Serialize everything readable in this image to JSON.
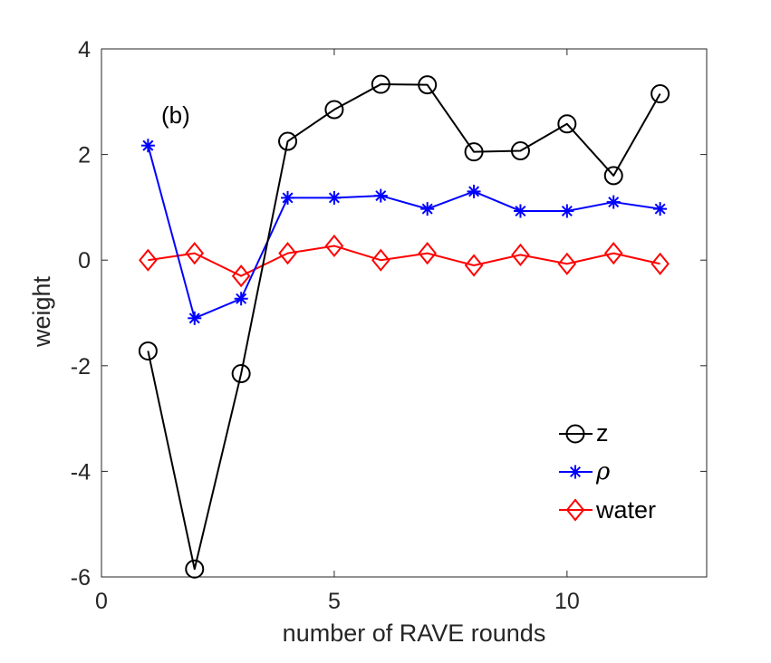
{
  "chart_data": {
    "type": "line",
    "title": "",
    "annotation": "(b)",
    "xlabel": "number of RAVE rounds",
    "ylabel": "weight",
    "xlim": [
      0,
      13
    ],
    "ylim": [
      -6,
      4
    ],
    "xticks": [
      0,
      5,
      10
    ],
    "yticks": [
      -6,
      -4,
      -2,
      0,
      2,
      4
    ],
    "grid": false,
    "legend_position": "bottom-right",
    "x": [
      1,
      2,
      3,
      4,
      5,
      6,
      7,
      8,
      9,
      10,
      11,
      12
    ],
    "series": [
      {
        "name": "z",
        "marker": "circle",
        "color": "#000000",
        "values": [
          -1.72,
          -5.85,
          -2.15,
          2.25,
          2.85,
          3.33,
          3.32,
          2.05,
          2.07,
          2.58,
          1.6,
          3.15
        ]
      },
      {
        "name": "ρ",
        "marker": "asterisk",
        "color": "#0000ff",
        "values": [
          2.17,
          -1.1,
          -0.73,
          1.18,
          1.18,
          1.22,
          0.97,
          1.3,
          0.93,
          0.93,
          1.1,
          0.97
        ]
      },
      {
        "name": "water",
        "marker": "diamond",
        "color": "#ff0000",
        "values": [
          0.0,
          0.13,
          -0.3,
          0.13,
          0.27,
          0.0,
          0.13,
          -0.1,
          0.1,
          -0.07,
          0.13,
          -0.07
        ]
      }
    ]
  }
}
